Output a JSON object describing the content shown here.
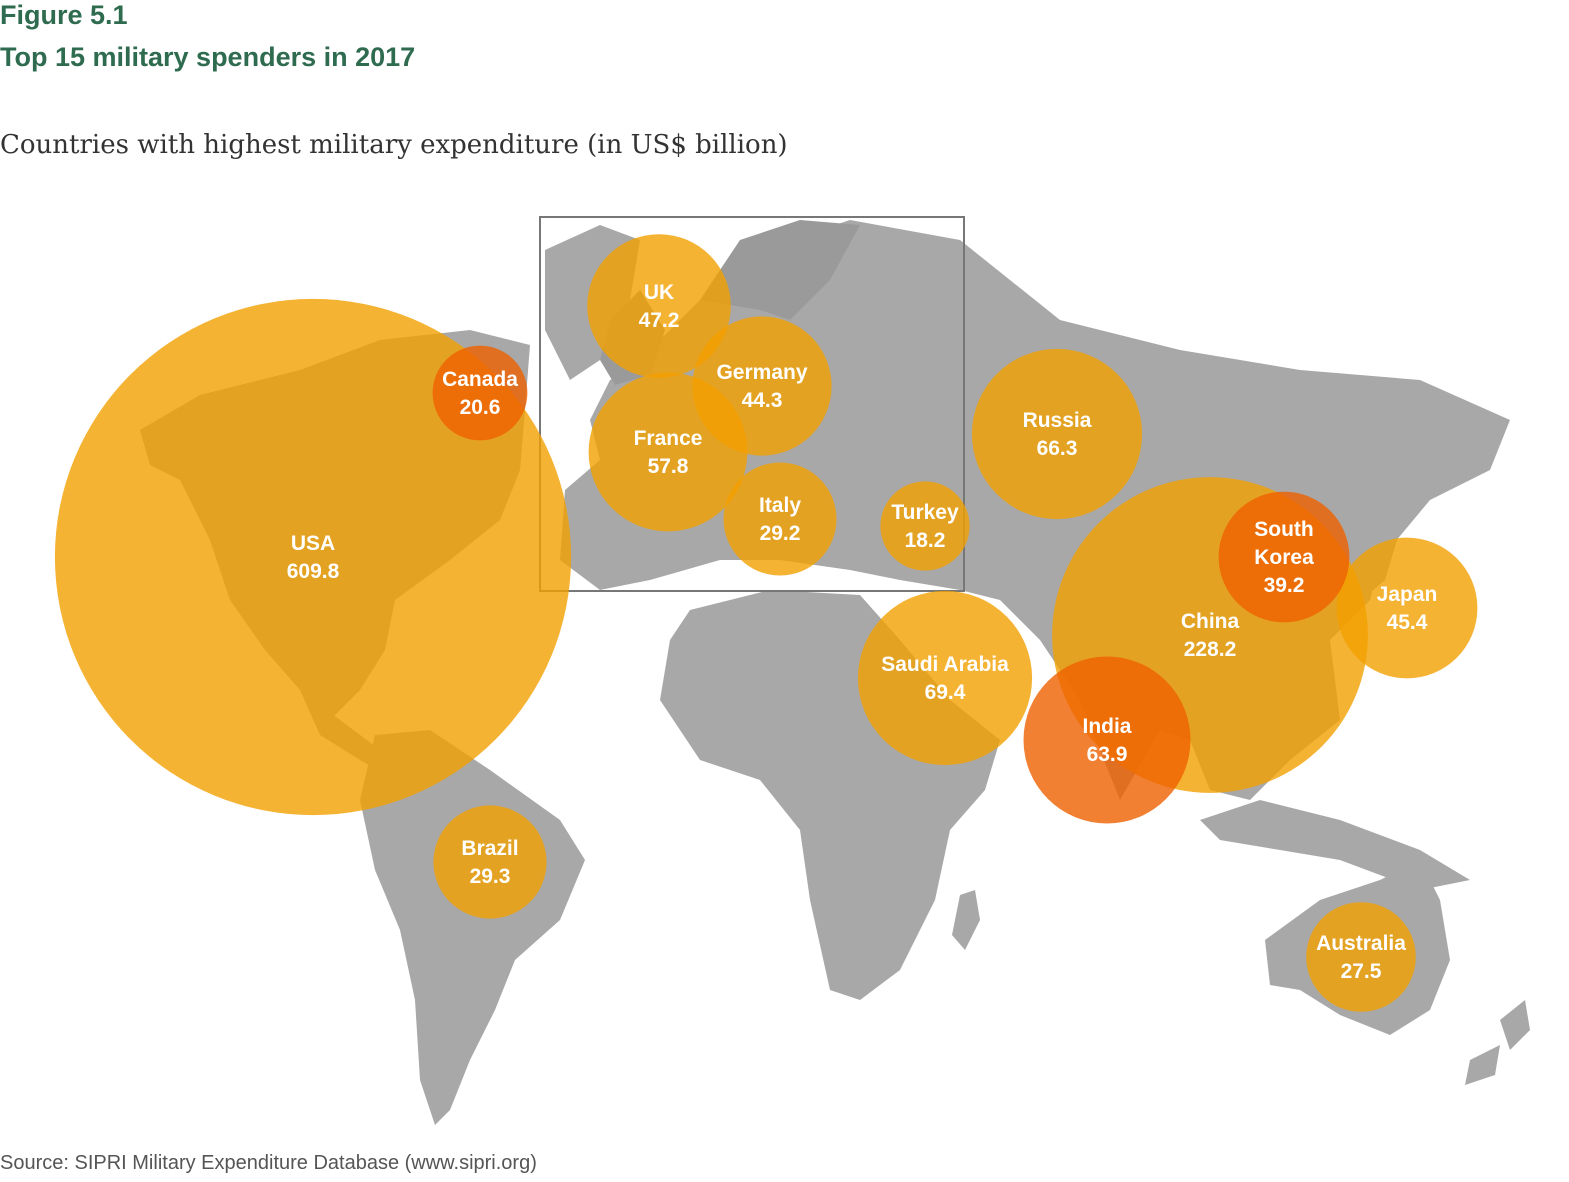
{
  "figure_label": "Figure 5.1",
  "title": "Top 15 military spenders in 2017",
  "subtitle": "Countries with highest military expenditure (in US$ billion)",
  "source": "Source: SIPRI Military Expenditure Database (www.sipri.org)",
  "colors": {
    "bubble": "#f2a000",
    "bubble_overlap": "#ef6000",
    "land": "#a8a8a8",
    "land_shade": "#9a9a9a",
    "heading": "#2e6b4f"
  },
  "chart_data": {
    "type": "proportional-symbol-map",
    "unit": "US$ billion",
    "year": 2017,
    "inset": "Europe",
    "countries": [
      {
        "name": "USA",
        "value": 609.8,
        "lines": [
          "USA",
          "609.8"
        ]
      },
      {
        "name": "China",
        "value": 228.2,
        "lines": [
          "China",
          "228.2"
        ]
      },
      {
        "name": "Saudi Arabia",
        "value": 69.4,
        "lines": [
          "Saudi Arabia",
          "69.4"
        ]
      },
      {
        "name": "Russia",
        "value": 66.3,
        "lines": [
          "Russia",
          "66.3"
        ]
      },
      {
        "name": "India",
        "value": 63.9,
        "lines": [
          "India",
          "63.9"
        ]
      },
      {
        "name": "France",
        "value": 57.8,
        "lines": [
          "France",
          "57.8"
        ]
      },
      {
        "name": "UK",
        "value": 47.2,
        "lines": [
          "UK",
          "47.2"
        ]
      },
      {
        "name": "Japan",
        "value": 45.4,
        "lines": [
          "Japan",
          "45.4"
        ]
      },
      {
        "name": "Germany",
        "value": 44.3,
        "lines": [
          "Germany",
          "44.3"
        ]
      },
      {
        "name": "South Korea",
        "value": 39.2,
        "lines": [
          "South",
          "Korea",
          "39.2"
        ]
      },
      {
        "name": "Brazil",
        "value": 29.3,
        "lines": [
          "Brazil",
          "29.3"
        ]
      },
      {
        "name": "Italy",
        "value": 29.2,
        "lines": [
          "Italy",
          "29.2"
        ]
      },
      {
        "name": "Australia",
        "value": 27.5,
        "lines": [
          "Australia",
          "27.5"
        ]
      },
      {
        "name": "Canada",
        "value": 20.6,
        "lines": [
          "Canada",
          "20.6"
        ]
      },
      {
        "name": "Turkey",
        "value": 18.2,
        "lines": [
          "Turkey",
          "18.2"
        ]
      }
    ]
  }
}
